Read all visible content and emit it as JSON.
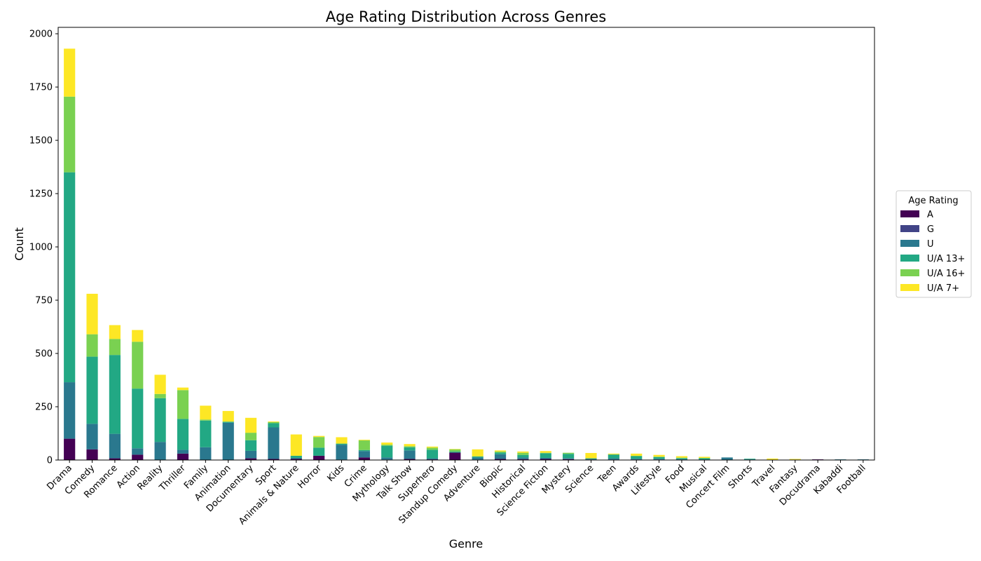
{
  "chart_data": {
    "type": "bar",
    "stacked": true,
    "title": "Age Rating Distribution Across Genres",
    "xlabel": "Genre",
    "ylabel": "Count",
    "ylim": [
      0,
      2030
    ],
    "yticks": [
      0,
      250,
      500,
      750,
      1000,
      1250,
      1500,
      1750,
      2000
    ],
    "categories": [
      "Drama",
      "Comedy",
      "Romance",
      "Action",
      "Reality",
      "Thriller",
      "Family",
      "Animation",
      "Documentary",
      "Sport",
      "Animals & Nature",
      "Horror",
      "Kids",
      "Crime",
      "Mythology",
      "Talk Show",
      "Superhero",
      "Standup Comedy",
      "Adventure",
      "Biopic",
      "Historical",
      "Science Fiction",
      "Mystery",
      "Science",
      "Teen",
      "Awards",
      "Lifestyle",
      "Food",
      "Musical",
      "Concert Film",
      "Shorts",
      "Travel",
      "Fantasy",
      "Docudrama",
      "Kabaddi",
      "Football"
    ],
    "legend": {
      "title": "Age Rating",
      "position": "center-right"
    },
    "series": [
      {
        "name": "A",
        "color": "#440154",
        "values": [
          100,
          50,
          8,
          25,
          0,
          30,
          0,
          0,
          8,
          5,
          5,
          20,
          2,
          12,
          2,
          5,
          3,
          35,
          2,
          5,
          4,
          5,
          4,
          2,
          2,
          2,
          2,
          0,
          0,
          0,
          0,
          0,
          0,
          3,
          0,
          0
        ]
      },
      {
        "name": "G",
        "color": "#414487",
        "values": [
          0,
          0,
          0,
          0,
          0,
          0,
          0,
          0,
          0,
          0,
          0,
          0,
          0,
          0,
          0,
          0,
          0,
          0,
          0,
          0,
          0,
          0,
          0,
          0,
          0,
          0,
          0,
          0,
          0,
          0,
          0,
          0,
          0,
          0,
          0,
          0
        ]
      },
      {
        "name": "U",
        "color": "#2a788e",
        "values": [
          265,
          120,
          115,
          30,
          85,
          18,
          60,
          175,
          35,
          148,
          5,
          0,
          70,
          30,
          10,
          40,
          5,
          0,
          10,
          22,
          8,
          5,
          5,
          3,
          6,
          4,
          4,
          4,
          3,
          12,
          3,
          2,
          2,
          0,
          3,
          3
        ]
      },
      {
        "name": "U/A 13+",
        "color": "#22a884",
        "values": [
          985,
          315,
          370,
          280,
          205,
          145,
          125,
          5,
          50,
          20,
          10,
          38,
          5,
          5,
          55,
          15,
          40,
          5,
          5,
          8,
          12,
          22,
          20,
          3,
          18,
          12,
          8,
          5,
          5,
          0,
          3,
          0,
          0,
          0,
          0,
          0
        ]
      },
      {
        "name": "U/A 16+",
        "color": "#7ad151",
        "values": [
          355,
          105,
          75,
          220,
          20,
          135,
          5,
          0,
          35,
          5,
          0,
          50,
          0,
          45,
          5,
          5,
          10,
          10,
          0,
          5,
          10,
          2,
          5,
          0,
          0,
          2,
          2,
          2,
          2,
          0,
          0,
          0,
          0,
          0,
          0,
          0
        ]
      },
      {
        "name": "U/A 7+",
        "color": "#fde725",
        "values": [
          225,
          190,
          65,
          55,
          90,
          12,
          65,
          50,
          70,
          3,
          100,
          5,
          30,
          3,
          10,
          10,
          5,
          2,
          33,
          5,
          6,
          8,
          0,
          25,
          4,
          10,
          8,
          7,
          5,
          0,
          0,
          5,
          3,
          0,
          0,
          0
        ]
      }
    ]
  }
}
